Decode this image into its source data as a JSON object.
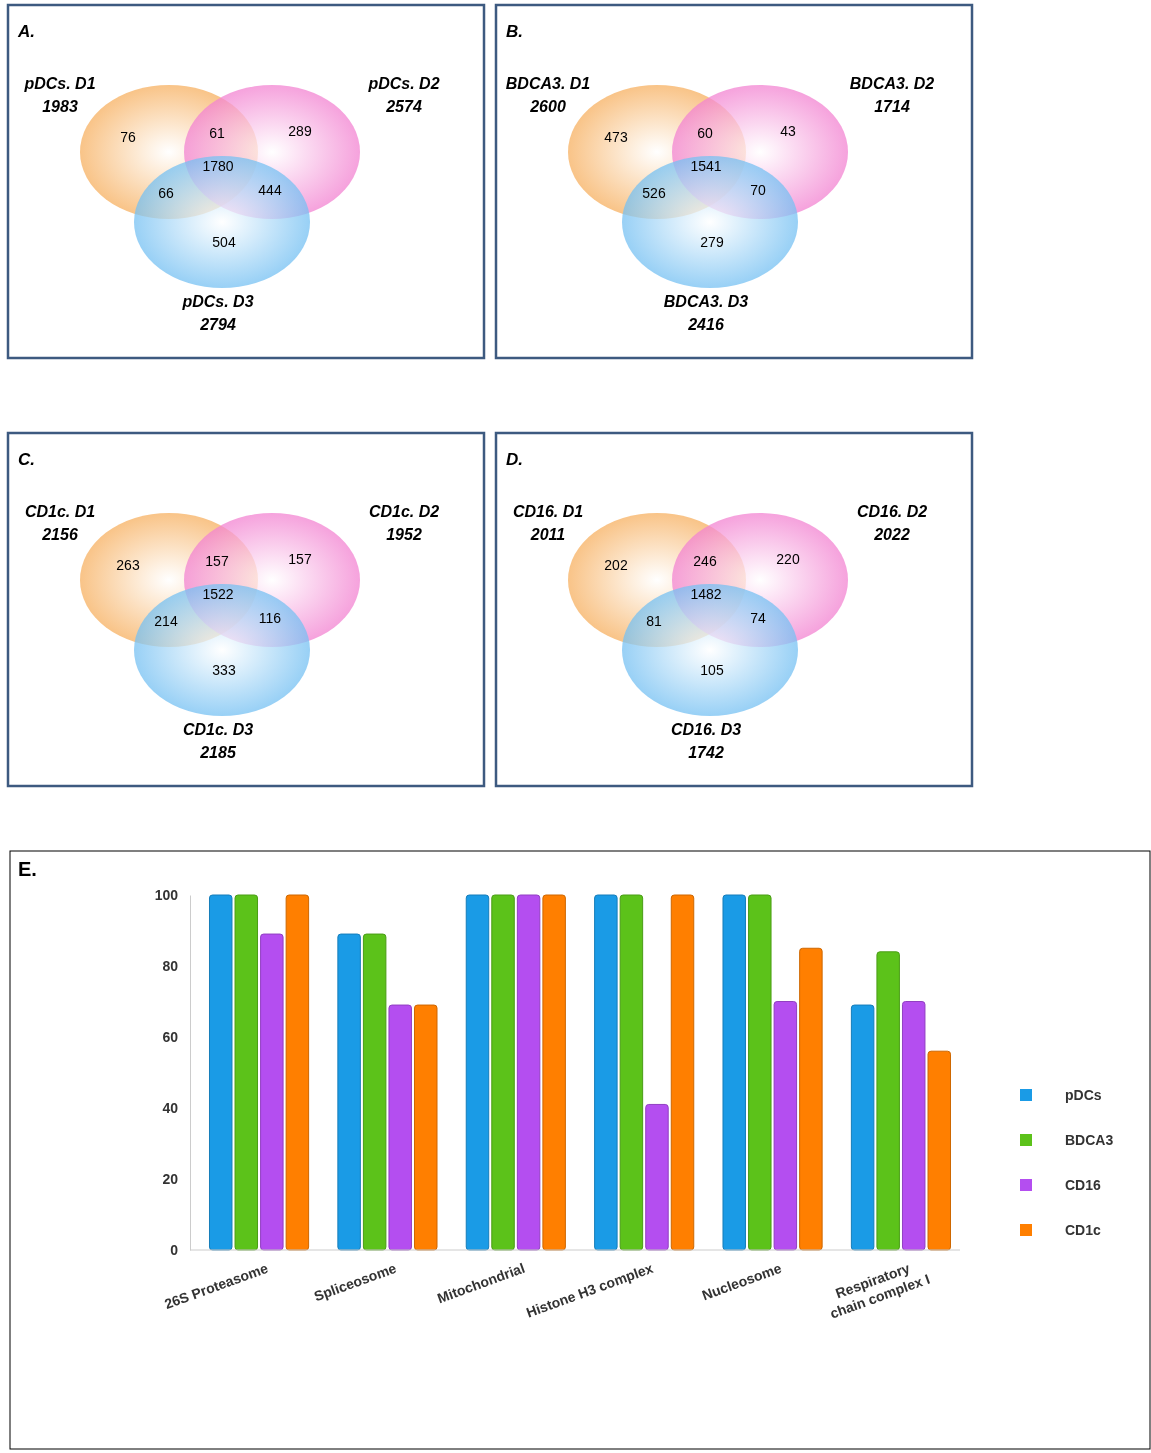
{
  "chart_data": [
    {
      "type": "other",
      "title": "A.",
      "categories": [
        "pDCs. D1",
        "pDCs. D2",
        "pDCs. D3"
      ],
      "values": [
        1983,
        2574,
        2794
      ],
      "colors": [
        "#f5a040",
        "#f06ac8",
        "#5ab4f0"
      ],
      "data_labels": true,
      "annotations": [
        "76",
        "61",
        "289",
        "1780",
        "66",
        "444",
        "504"
      ]
    },
    {
      "type": "other",
      "title": "B.",
      "categories": [
        "BDCA3. D1",
        "BDCA3. D2",
        "BDCA3. D3"
      ],
      "values": [
        2600,
        1714,
        2416
      ],
      "colors": [
        "#f5a040",
        "#f06ac8",
        "#5ab4f0"
      ],
      "data_labels": true,
      "annotations": [
        "473",
        "60",
        "43",
        "1541",
        "526",
        "70",
        "279"
      ]
    },
    {
      "type": "other",
      "title": "C.",
      "categories": [
        "CD1c. D1",
        "CD1c. D2",
        "CD1c. D3"
      ],
      "values": [
        2156,
        1952,
        2185
      ],
      "colors": [
        "#f5a040",
        "#f06ac8",
        "#5ab4f0"
      ],
      "data_labels": true,
      "annotations": [
        "263",
        "157",
        "157",
        "1522",
        "214",
        "116",
        "333"
      ]
    },
    {
      "type": "other",
      "title": "D.",
      "categories": [
        "CD16. D1",
        "CD16. D2",
        "CD16. D3"
      ],
      "values": [
        2011,
        2022,
        1742
      ],
      "colors": [
        "#f5a040",
        "#f06ac8",
        "#5ab4f0"
      ],
      "data_labels": true,
      "annotations": [
        "202",
        "246",
        "220",
        "1482",
        "81",
        "74",
        "105"
      ]
    },
    {
      "type": "bar",
      "title": "E.",
      "categories": [
        "26S Proteasome",
        "Spliceosome",
        "Mitochondrial",
        "Histone H3 complex",
        "Nucleosome",
        "Respiratory chain complex I"
      ],
      "series": [
        {
          "name": "pDCs",
          "color": "#1a9be6",
          "values": [
            100,
            89,
            100,
            100,
            100,
            69
          ]
        },
        {
          "name": "BDCA3",
          "color": "#5cc21a",
          "values": [
            100,
            89,
            100,
            100,
            100,
            84
          ]
        },
        {
          "name": "CD16",
          "color": "#b44ef0",
          "values": [
            89,
            69,
            100,
            41,
            70,
            70
          ]
        },
        {
          "name": "CD1c",
          "color": "#ff7f00",
          "values": [
            100,
            69,
            100,
            100,
            85,
            56
          ]
        }
      ],
      "ylim": [
        0,
        100
      ],
      "yticks": [
        0,
        20,
        40,
        60,
        80,
        100
      ],
      "legend": "right"
    }
  ]
}
